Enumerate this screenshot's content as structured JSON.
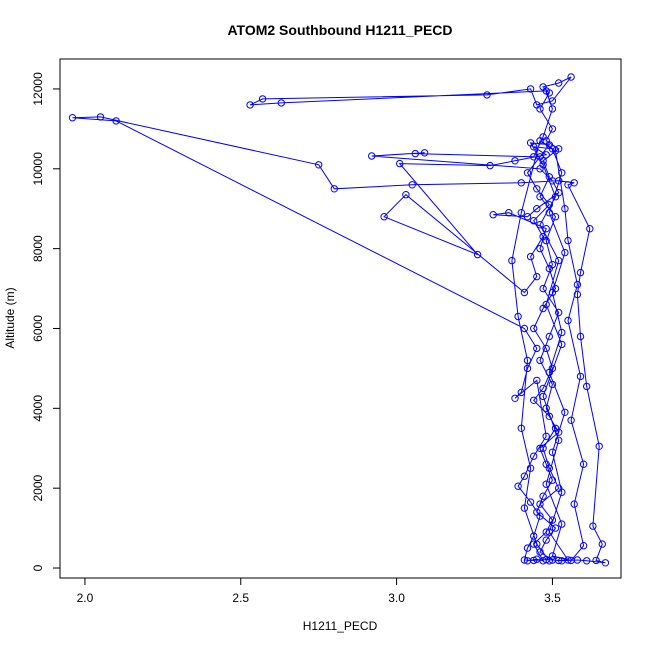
{
  "chart_data": {
    "type": "scatter",
    "connected": true,
    "title": "ATOM2 Southbound H1211_PECD",
    "xlabel": "H1211_PECD",
    "ylabel": "Altitude (m)",
    "xlim": [
      1.92,
      3.72
    ],
    "ylim": [
      -250,
      12750
    ],
    "xticks": [
      2.0,
      2.5,
      3.0,
      3.5
    ],
    "xtick_labels": [
      "2.0",
      "2.5",
      "3.0",
      "3.5"
    ],
    "yticks": [
      0,
      2000,
      4000,
      6000,
      8000,
      10000,
      12000
    ],
    "ytick_labels": [
      "0",
      "2000",
      "4000",
      "6000",
      "8000",
      "10000",
      "12000"
    ],
    "grid": false,
    "series": [
      {
        "color": "#0000ff",
        "marker": "open-circle",
        "points": [
          [
            3.42,
            180
          ],
          [
            3.45,
            220
          ],
          [
            3.47,
            180
          ],
          [
            3.44,
            600
          ],
          [
            3.48,
            900
          ],
          [
            3.5,
            1200
          ],
          [
            3.46,
            1600
          ],
          [
            3.52,
            2000
          ],
          [
            3.49,
            2500
          ],
          [
            3.47,
            3000
          ],
          [
            3.51,
            3500
          ],
          [
            3.48,
            4000
          ],
          [
            3.5,
            4600
          ],
          [
            3.46,
            5200
          ],
          [
            3.49,
            5800
          ],
          [
            3.52,
            6400
          ],
          [
            3.47,
            7000
          ],
          [
            3.5,
            7600
          ],
          [
            3.48,
            8200
          ],
          [
            3.51,
            8800
          ],
          [
            3.46,
            9300
          ],
          [
            3.49,
            9800
          ],
          [
            3.47,
            10200
          ],
          [
            3.52,
            10500
          ],
          [
            3.48,
            10700
          ],
          [
            3.5,
            11000
          ],
          [
            3.46,
            11500
          ],
          [
            3.49,
            11900
          ],
          [
            3.47,
            12050
          ],
          [
            3.52,
            12150
          ],
          [
            3.56,
            12300
          ],
          [
            3.5,
            11700
          ],
          [
            3.45,
            11600
          ],
          [
            3.43,
            12000
          ],
          [
            3.29,
            11850
          ],
          [
            2.57,
            11750
          ],
          [
            2.53,
            11600
          ],
          [
            2.63,
            11650
          ],
          [
            3.48,
            11950
          ],
          [
            3.5,
            11500
          ],
          [
            3.47,
            10800
          ],
          [
            3.44,
            10300
          ],
          [
            3.06,
            10380
          ],
          [
            3.09,
            10400
          ],
          [
            2.92,
            10320
          ],
          [
            3.46,
            10000
          ],
          [
            3.5,
            9700
          ],
          [
            3.52,
            9400
          ],
          [
            3.45,
            9000
          ],
          [
            3.42,
            8800
          ],
          [
            3.31,
            8850
          ],
          [
            3.36,
            8900
          ],
          [
            3.48,
            8500
          ],
          [
            3.46,
            8000
          ],
          [
            3.49,
            7500
          ],
          [
            3.51,
            7000
          ],
          [
            3.47,
            6500
          ],
          [
            3.44,
            6000
          ],
          [
            3.48,
            5500
          ],
          [
            3.5,
            5000
          ],
          [
            3.47,
            4500
          ],
          [
            3.44,
            4200
          ],
          [
            3.49,
            3800
          ],
          [
            3.52,
            3400
          ],
          [
            3.46,
            3000
          ],
          [
            3.48,
            2600
          ],
          [
            3.5,
            2200
          ],
          [
            3.47,
            1800
          ],
          [
            3.45,
            1400
          ],
          [
            3.51,
            1000
          ],
          [
            3.48,
            700
          ],
          [
            3.46,
            400
          ],
          [
            3.5,
            200
          ],
          [
            3.53,
            180
          ],
          [
            3.58,
            200
          ],
          [
            3.61,
            180
          ],
          [
            3.67,
            130
          ],
          [
            3.64,
            190
          ],
          [
            3.66,
            600
          ],
          [
            3.63,
            1050
          ],
          [
            3.65,
            3050
          ],
          [
            3.61,
            4550
          ],
          [
            3.59,
            5800
          ],
          [
            3.58,
            6850
          ],
          [
            3.59,
            7400
          ],
          [
            3.62,
            8500
          ],
          [
            3.55,
            9600
          ],
          [
            3.57,
            9650
          ],
          [
            3.52,
            9700
          ],
          [
            3.4,
            9650
          ],
          [
            3.05,
            9600
          ],
          [
            2.8,
            9500
          ],
          [
            2.75,
            10100
          ],
          [
            2.05,
            11300
          ],
          [
            1.96,
            11280
          ],
          [
            2.1,
            11200
          ],
          [
            3.41,
            6000
          ],
          [
            3.45,
            5500
          ],
          [
            3.42,
            5000
          ],
          [
            3.4,
            4400
          ],
          [
            3.38,
            4250
          ],
          [
            3.45,
            4700
          ],
          [
            3.48,
            3300
          ],
          [
            3.44,
            2800
          ],
          [
            3.41,
            2300
          ],
          [
            3.39,
            2050
          ],
          [
            3.43,
            1650
          ],
          [
            3.46,
            1300
          ],
          [
            3.44,
            800
          ],
          [
            3.42,
            500
          ],
          [
            3.41,
            200
          ],
          [
            3.44,
            190
          ],
          [
            3.48,
            210
          ],
          [
            3.52,
            190
          ],
          [
            3.55,
            200
          ],
          [
            3.49,
            900
          ],
          [
            3.53,
            1900
          ],
          [
            3.5,
            2900
          ],
          [
            3.54,
            3900
          ],
          [
            3.49,
            4900
          ],
          [
            3.53,
            5900
          ],
          [
            3.5,
            6900
          ],
          [
            3.54,
            7900
          ],
          [
            3.49,
            8900
          ],
          [
            3.53,
            9900
          ],
          [
            3.5,
            10500
          ],
          [
            3.44,
            10550
          ],
          [
            3.48,
            10350
          ],
          [
            3.38,
            10200
          ],
          [
            3.3,
            10080
          ],
          [
            3.01,
            10130
          ],
          [
            3.26,
            7850
          ],
          [
            2.96,
            8800
          ],
          [
            3.03,
            9350
          ],
          [
            3.41,
            6900
          ],
          [
            3.45,
            7300
          ],
          [
            3.43,
            7800
          ],
          [
            3.47,
            8300
          ],
          [
            3.44,
            8700
          ],
          [
            3.49,
            9100
          ],
          [
            3.45,
            9500
          ],
          [
            3.42,
            9900
          ],
          [
            3.46,
            10300
          ],
          [
            3.49,
            10600
          ],
          [
            3.43,
            10650
          ],
          [
            3.47,
            10100
          ],
          [
            3.51,
            9300
          ],
          [
            3.46,
            8600
          ],
          [
            3.52,
            7700
          ],
          [
            3.48,
            6600
          ],
          [
            3.53,
            5600
          ],
          [
            3.47,
            4300
          ],
          [
            3.52,
            3200
          ],
          [
            3.48,
            2100
          ],
          [
            3.53,
            1100
          ],
          [
            3.5,
            300
          ],
          [
            3.56,
            190
          ],
          [
            3.6,
            560
          ],
          [
            3.57,
            1600
          ],
          [
            3.6,
            2600
          ],
          [
            3.56,
            3700
          ],
          [
            3.59,
            4800
          ],
          [
            3.55,
            6200
          ],
          [
            3.58,
            7100
          ],
          [
            3.55,
            8200
          ],
          [
            3.54,
            9000
          ],
          [
            3.51,
            10450
          ],
          [
            3.46,
            10700
          ],
          [
            3.4,
            8900
          ],
          [
            3.37,
            7700
          ],
          [
            3.39,
            6300
          ],
          [
            3.42,
            5200
          ],
          [
            3.4,
            3500
          ],
          [
            3.43,
            2500
          ],
          [
            3.41,
            1500
          ],
          [
            3.45,
            600
          ],
          [
            3.49,
            180
          ]
        ]
      }
    ]
  }
}
